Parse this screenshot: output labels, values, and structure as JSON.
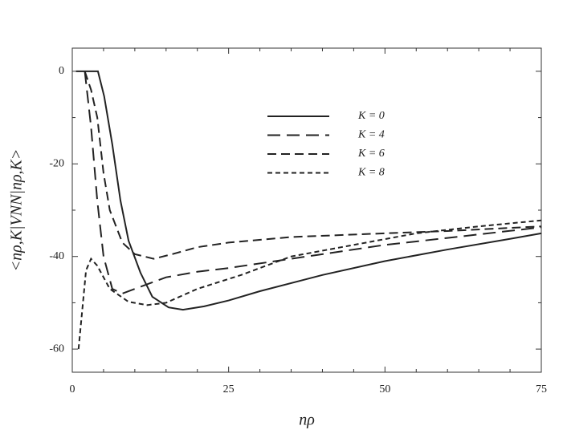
{
  "chart_data": {
    "type": "line",
    "xlabel": "nρ",
    "ylabel": "<nρ,K|VNN|nρ,K>",
    "xlim": [
      0,
      75
    ],
    "ylim": [
      -65,
      5
    ],
    "xticks": [
      0,
      25,
      50,
      75
    ],
    "yticks": [
      -60,
      -40,
      -20,
      0
    ],
    "minor_xticks": [
      5,
      10,
      15,
      20,
      30,
      35,
      40,
      45,
      55,
      60,
      65,
      70
    ],
    "minor_yticks": [
      -50,
      -30,
      -10
    ],
    "series": [
      {
        "name": "K = 0",
        "color": "#222222",
        "dash": "none",
        "x": [
          0.6,
          4.1,
          5.1,
          6.4,
          7.7,
          9,
          10.9,
          12.8,
          15.4,
          17.7,
          21,
          25,
          30,
          40,
          50,
          60,
          70,
          75
        ],
        "values": [
          0,
          0,
          -5.4,
          -15.8,
          -27.9,
          -36.6,
          -43.5,
          -48.7,
          -51,
          -51.5,
          -50.8,
          -49.5,
          -47.5,
          -44,
          -41,
          -38.5,
          -36.2,
          -35
        ]
      },
      {
        "name": "K = 4",
        "color": "#222222",
        "dash": "16 8",
        "x": [
          2,
          3,
          4,
          5,
          6.4,
          8,
          11,
          15,
          20,
          25,
          40,
          50,
          60,
          75
        ],
        "values": [
          0,
          -12,
          -28,
          -40,
          -47,
          -48,
          -46.5,
          -44.5,
          -43.3,
          -42.5,
          -39.5,
          -37.5,
          -36,
          -33.7
        ]
      },
      {
        "name": "K = 6",
        "color": "#222222",
        "dash": "11 6",
        "x": [
          2,
          3,
          4,
          5,
          6,
          8,
          10,
          13,
          16,
          20,
          25,
          35,
          50,
          60,
          75
        ],
        "values": [
          0,
          -4,
          -10,
          -22,
          -30,
          -37,
          -39.5,
          -40.5,
          -39.5,
          -38,
          -37,
          -35.8,
          -35,
          -34.5,
          -33.5
        ]
      },
      {
        "name": "K = 8",
        "color": "#222222",
        "dash": "6 4",
        "x": [
          1,
          2.2,
          3,
          4,
          6,
          9,
          12,
          15,
          20,
          27,
          35,
          45,
          55,
          65,
          75
        ],
        "values": [
          -60,
          -43,
          -40.5,
          -42,
          -47,
          -49.8,
          -50.5,
          -50,
          -47,
          -44,
          -40,
          -37.5,
          -35,
          -33.5,
          -32.2
        ]
      }
    ]
  }
}
